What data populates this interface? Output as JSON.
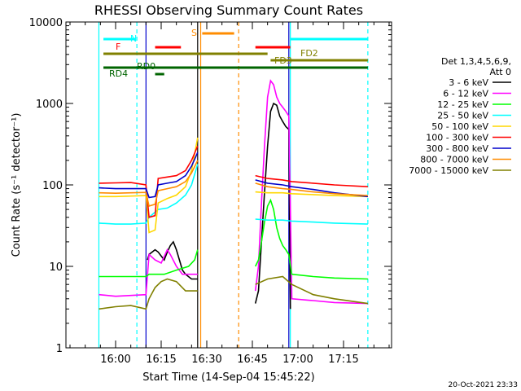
{
  "chart_data": {
    "type": "line",
    "title": "RHESSI Observing Summary Count Rates",
    "ylabel": "Count Rate (s⁻¹ detector⁻¹)",
    "xlabel": "Start Time (14-Sep-04 15:45:22)",
    "yscale": "log",
    "ylim": [
      1,
      10000
    ],
    "xlim_minutes": [
      15.0,
      83.0
    ],
    "x_ticks": [
      "16:00",
      "16:15",
      "16:30",
      "16:45",
      "17:00",
      "17:15"
    ],
    "x_tick_minutes": [
      14.6,
      29.6,
      44.6,
      59.6,
      74.6,
      89.6
    ],
    "y_ticks": [
      "1",
      "10",
      "100",
      "1000",
      "10000"
    ],
    "y_tick_values": [
      1,
      10,
      100,
      1000,
      10000
    ],
    "timestamp": "20-Oct-2021 23:33",
    "legend": {
      "header": "Det 1,3,4,5,6,9,",
      "header2": "Att 0",
      "placement": "right",
      "entries": [
        {
          "label": "3 - 6 keV",
          "color": "#000000"
        },
        {
          "label": "6 - 12 keV",
          "color": "#ff00ff"
        },
        {
          "label": "12 - 25 keV",
          "color": "#00ff00"
        },
        {
          "label": "25 - 50 keV",
          "color": "#00ffff"
        },
        {
          "label": "50 - 100 keV",
          "color": "#ffd700"
        },
        {
          "label": "100 - 300 keV",
          "color": "#ff0000"
        },
        {
          "label": "300 - 800 keV",
          "color": "#0000cc"
        },
        {
          "label": "800 - 7000 keV",
          "color": "#ff8c00"
        },
        {
          "label": "7000 - 15000 keV",
          "color": "#808000"
        }
      ]
    },
    "flag_bars": [
      {
        "label": "N",
        "color": "#00ffff",
        "segments": [
          [
            -4.0,
            6.5
          ],
          [
            57.5,
            83.0
          ]
        ]
      },
      {
        "label": "S",
        "color": "#ff8c00",
        "segments": [
          [
            28.5,
            39.0
          ]
        ]
      },
      {
        "label": "F",
        "color": "#ff0000",
        "segments": [
          [
            13.0,
            21.5
          ],
          [
            46.0,
            57.5
          ]
        ]
      },
      {
        "label": "FD2",
        "color": "#808000",
        "segments": [
          [
            -4.0,
            50.0
          ]
        ]
      },
      {
        "label": "FD3",
        "color": "#808000",
        "segments": [
          [
            51.0,
            83.0
          ]
        ]
      },
      {
        "label": "RD0",
        "color": "#006400",
        "segments": [
          [
            -4.0,
            83.0
          ]
        ]
      },
      {
        "label": "RD4",
        "color": "#006400",
        "segments": [
          [
            13.0,
            16.0
          ]
        ]
      }
    ],
    "vlines": [
      {
        "minute": -5.5,
        "color": "#00ffff",
        "style": "solid"
      },
      {
        "minute": 7.0,
        "color": "#00ffff",
        "style": "dashed"
      },
      {
        "minute": 10.0,
        "color": "#0000cc",
        "style": "solid"
      },
      {
        "minute": 27.0,
        "color": "#000000",
        "style": "solid"
      },
      {
        "minute": 28.0,
        "color": "#ff8c00",
        "style": "solid"
      },
      {
        "minute": 40.5,
        "color": "#ff8c00",
        "style": "dashed"
      },
      {
        "minute": 57.0,
        "color": "#0000cc",
        "style": "solid"
      },
      {
        "minute": 57.5,
        "color": "#00ffff",
        "style": "solid"
      },
      {
        "minute": 83.0,
        "color": "#00ffff",
        "style": "dashed"
      }
    ],
    "series": [
      {
        "name": "3 - 6 keV",
        "color": "#000000",
        "segments": [
          [
            [
              10.5,
              12
            ],
            [
              11,
              14
            ],
            [
              13,
              16
            ],
            [
              14,
              15
            ],
            [
              16,
              12
            ],
            [
              17,
              15
            ],
            [
              18,
              18
            ],
            [
              19,
              20
            ],
            [
              20,
              16
            ],
            [
              21,
              12
            ],
            [
              22,
              9
            ],
            [
              23,
              8
            ],
            [
              25,
              7
            ],
            [
              27,
              7
            ]
          ],
          [
            [
              46,
              3.5
            ],
            [
              47,
              5
            ],
            [
              48,
              20
            ],
            [
              49,
              80
            ],
            [
              50,
              300
            ],
            [
              51,
              800
            ],
            [
              52,
              1000
            ],
            [
              53,
              950
            ],
            [
              54,
              700
            ],
            [
              55,
              600
            ],
            [
              56,
              520
            ],
            [
              57,
              480
            ],
            [
              57.5,
              3
            ]
          ]
        ]
      },
      {
        "name": "6 - 12 keV",
        "color": "#ff00ff",
        "segments": [
          [
            [
              -5.5,
              4.5
            ],
            [
              0,
              4.3
            ],
            [
              5,
              4.4
            ],
            [
              10,
              4.5
            ],
            [
              11,
              14
            ],
            [
              13,
              12
            ],
            [
              15,
              11
            ],
            [
              17,
              16
            ],
            [
              18,
              14
            ],
            [
              20,
              10
            ],
            [
              22,
              8
            ],
            [
              24,
              8
            ],
            [
              27,
              8
            ]
          ],
          [
            [
              46,
              5
            ],
            [
              47,
              10
            ],
            [
              48,
              60
            ],
            [
              49,
              300
            ],
            [
              50,
              1200
            ],
            [
              51,
              1900
            ],
            [
              52,
              1700
            ],
            [
              53,
              1200
            ],
            [
              54,
              1000
            ],
            [
              55,
              900
            ],
            [
              56,
              800
            ],
            [
              57,
              700
            ],
            [
              58,
              4
            ],
            [
              65,
              3.8
            ],
            [
              72,
              3.6
            ],
            [
              83,
              3.5
            ]
          ]
        ]
      },
      {
        "name": "12 - 25 keV",
        "color": "#00ff00",
        "segments": [
          [
            [
              -5.5,
              7.5
            ],
            [
              0,
              7.5
            ],
            [
              5,
              7.5
            ],
            [
              10,
              7.5
            ],
            [
              11,
              8
            ],
            [
              16,
              8
            ],
            [
              20,
              9
            ],
            [
              24,
              10
            ],
            [
              26,
              12
            ],
            [
              27,
              16
            ]
          ],
          [
            [
              46,
              10
            ],
            [
              47,
              12
            ],
            [
              48,
              20
            ],
            [
              49,
              35
            ],
            [
              50,
              55
            ],
            [
              51,
              65
            ],
            [
              52,
              50
            ],
            [
              53,
              30
            ],
            [
              54,
              22
            ],
            [
              55,
              18
            ],
            [
              56,
              16
            ],
            [
              57,
              14
            ],
            [
              58,
              8
            ],
            [
              65,
              7.5
            ],
            [
              72,
              7.2
            ],
            [
              83,
              7
            ]
          ]
        ]
      },
      {
        "name": "25 - 50 keV",
        "color": "#00ffff",
        "segments": [
          [
            [
              -5.5,
              34
            ],
            [
              0,
              33
            ],
            [
              5,
              33
            ],
            [
              10,
              34
            ],
            [
              11,
              40
            ],
            [
              14,
              50
            ],
            [
              17,
              52
            ],
            [
              20,
              60
            ],
            [
              23,
              75
            ],
            [
              25,
              100
            ],
            [
              27,
              180
            ]
          ],
          [
            [
              46,
              38
            ],
            [
              50,
              37
            ],
            [
              55,
              37
            ],
            [
              58,
              36
            ],
            [
              65,
              35
            ],
            [
              72,
              34
            ],
            [
              83,
              33
            ]
          ]
        ]
      },
      {
        "name": "50 - 100 keV",
        "color": "#ffd700",
        "segments": [
          [
            [
              -5.5,
              72
            ],
            [
              0,
              72
            ],
            [
              5,
              73
            ],
            [
              10,
              74
            ],
            [
              11,
              26
            ],
            [
              13,
              28
            ],
            [
              14,
              60
            ],
            [
              17,
              68
            ],
            [
              20,
              75
            ],
            [
              23,
              95
            ],
            [
              25,
              150
            ],
            [
              27,
              380
            ]
          ],
          [
            [
              46,
              82
            ],
            [
              50,
              80
            ],
            [
              55,
              80
            ],
            [
              58,
              78
            ],
            [
              65,
              76
            ],
            [
              72,
              74
            ],
            [
              83,
              72
            ]
          ]
        ]
      },
      {
        "name": "100 - 300 keV",
        "color": "#ff0000",
        "segments": [
          [
            [
              -5.5,
              105
            ],
            [
              0,
              106
            ],
            [
              5,
              107
            ],
            [
              10,
              100
            ],
            [
              11,
              40
            ],
            [
              13,
              42
            ],
            [
              14,
              120
            ],
            [
              17,
              125
            ],
            [
              20,
              130
            ],
            [
              23,
              150
            ],
            [
              25,
              200
            ],
            [
              27,
              300
            ]
          ],
          [
            [
              46,
              130
            ],
            [
              50,
              120
            ],
            [
              55,
              115
            ],
            [
              58,
              110
            ],
            [
              65,
              105
            ],
            [
              72,
              100
            ],
            [
              83,
              95
            ]
          ]
        ]
      },
      {
        "name": "300 - 800 keV",
        "color": "#0000cc",
        "segments": [
          [
            [
              -5.5,
              92
            ],
            [
              0,
              90
            ],
            [
              5,
              90
            ],
            [
              10,
              90
            ],
            [
              11,
              70
            ],
            [
              13,
              72
            ],
            [
              14,
              100
            ],
            [
              17,
              105
            ],
            [
              20,
              110
            ],
            [
              23,
              130
            ],
            [
              25,
              170
            ],
            [
              27,
              250
            ]
          ],
          [
            [
              46,
              115
            ],
            [
              50,
              105
            ],
            [
              55,
              100
            ],
            [
              58,
              95
            ],
            [
              65,
              88
            ],
            [
              72,
              80
            ],
            [
              83,
              72
            ]
          ]
        ]
      },
      {
        "name": "800 - 7000 keV",
        "color": "#ff8c00",
        "segments": [
          [
            [
              -5.5,
              80
            ],
            [
              0,
              79
            ],
            [
              5,
              80
            ],
            [
              10,
              81
            ],
            [
              11,
              55
            ],
            [
              13,
              58
            ],
            [
              14,
              85
            ],
            [
              17,
              90
            ],
            [
              20,
              95
            ],
            [
              23,
              110
            ],
            [
              25,
              140
            ],
            [
              27,
              200
            ]
          ],
          [
            [
              46,
              105
            ],
            [
              50,
              95
            ],
            [
              55,
              90
            ],
            [
              58,
              88
            ],
            [
              65,
              82
            ],
            [
              72,
              78
            ],
            [
              83,
              74
            ]
          ]
        ]
      },
      {
        "name": "7000 - 15000 keV",
        "color": "#808000",
        "segments": [
          [
            [
              -5.5,
              3.0
            ],
            [
              0,
              3.2
            ],
            [
              5,
              3.3
            ],
            [
              10,
              3.0
            ],
            [
              11,
              4
            ],
            [
              13,
              5.5
            ],
            [
              15,
              6.5
            ],
            [
              17,
              7
            ],
            [
              20,
              6.5
            ],
            [
              23,
              5
            ],
            [
              27,
              5
            ]
          ],
          [
            [
              46,
              6
            ],
            [
              50,
              7
            ],
            [
              55,
              7.5
            ],
            [
              58,
              6
            ],
            [
              65,
              4.5
            ],
            [
              72,
              4
            ],
            [
              83,
              3.5
            ]
          ]
        ]
      }
    ]
  }
}
